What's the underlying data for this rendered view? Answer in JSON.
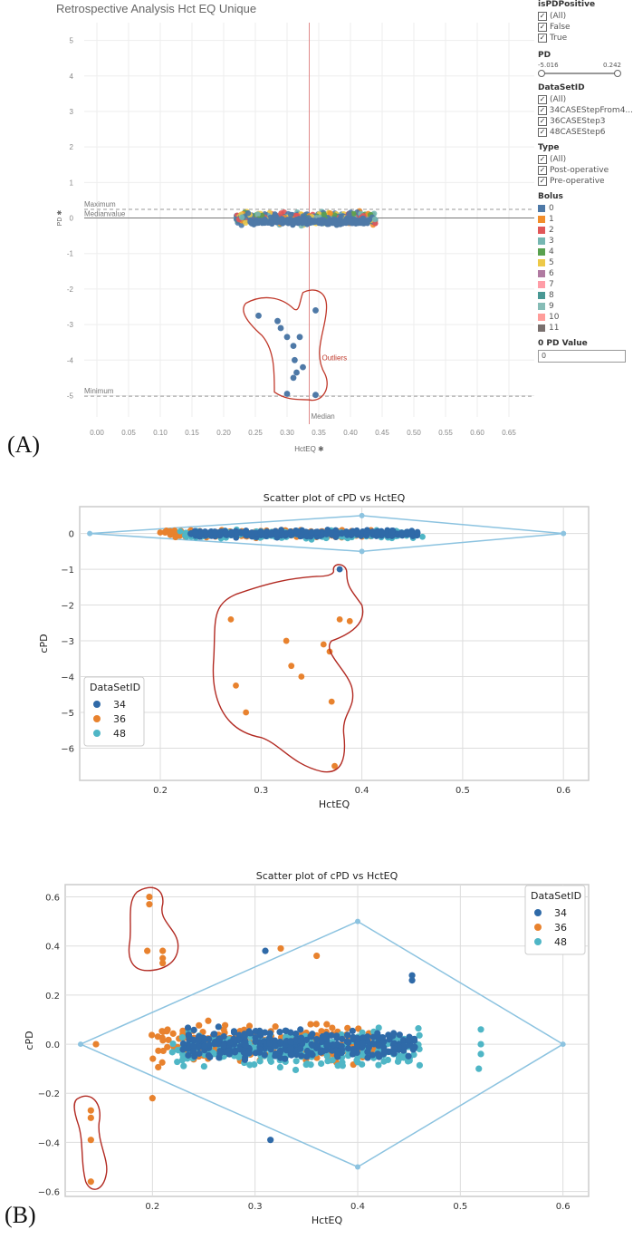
{
  "figure_labels": {
    "a": "(A)",
    "b": "(B)"
  },
  "panelA": {
    "title": "Retrospective Analysis Hct EQ Unique",
    "x_axis_title": "HctEQ ✱",
    "y_axis_title": "PD ✱",
    "ref_lines": {
      "maximum": "Maximum",
      "median_value": "Medianvalue",
      "minimum": "Minimum",
      "median": "Median"
    },
    "outlier_label": "Outliers",
    "filters": {
      "ispd": {
        "title": "isPDPositive",
        "items": [
          "(All)",
          "False",
          "True"
        ]
      },
      "pd": {
        "title": "PD",
        "min": "-5.016",
        "max": "0.242"
      },
      "dataset": {
        "title": "DataSetID",
        "items": [
          "(All)",
          "34CASEStepFrom4...",
          "36CASEStep3",
          "48CASEStep6"
        ]
      },
      "type": {
        "title": "Type",
        "items": [
          "(All)",
          "Post-operative",
          "Pre-operative"
        ]
      },
      "bolus": {
        "title": "Bolus",
        "items": [
          "0",
          "1",
          "2",
          "3",
          "4",
          "5",
          "6",
          "7",
          "8",
          "9",
          "10",
          "11"
        ],
        "colors": [
          "#4e79a7",
          "#f28e2b",
          "#e15759",
          "#76b7b2",
          "#59a14f",
          "#edc948",
          "#b07aa1",
          "#ff9da7",
          "#499894",
          "#86bcb6",
          "#ff9d9a",
          "#79706e"
        ]
      },
      "pd_value": {
        "title": "0 PD Value",
        "value": "0"
      }
    }
  },
  "chart_data": [
    {
      "type": "scatter",
      "title": "Retrospective Analysis Hct EQ Unique",
      "xlabel": "HctEQ",
      "ylabel": "PD",
      "xlim": [
        -0.02,
        0.69
      ],
      "ylim": [
        -5.6,
        5.5
      ],
      "xticks": [
        0.0,
        0.05,
        0.1,
        0.15,
        0.2,
        0.25,
        0.3,
        0.35,
        0.4,
        0.45,
        0.5,
        0.55,
        0.6,
        0.65
      ],
      "xtick_labels": [
        "0.00",
        "0.05",
        "0.10",
        "0.15",
        "0.20",
        "0.25",
        "0.30",
        "0.35",
        "0.40",
        "0.45",
        "0.50",
        "0.55",
        "0.60",
        "0.65"
      ],
      "yticks": [
        5,
        4,
        3,
        2,
        1,
        0,
        -1,
        -2,
        -3,
        -4,
        -5
      ],
      "ytick_labels": [
        "5",
        "4",
        "3",
        "2",
        "1",
        "0",
        "-1",
        "-2",
        "-3",
        "-4",
        "-5"
      ],
      "reference_lines": {
        "maximum": 0.242,
        "median": 0.0,
        "minimum": -5.016,
        "median_x": 0.335
      },
      "cluster": {
        "x_range": [
          0.22,
          0.44
        ],
        "y_range": [
          -0.3,
          0.25
        ]
      },
      "outliers": [
        [
          0.255,
          -2.75
        ],
        [
          0.285,
          -2.9
        ],
        [
          0.3,
          -3.35
        ],
        [
          0.29,
          -3.1
        ],
        [
          0.32,
          -3.35
        ],
        [
          0.31,
          -3.6
        ],
        [
          0.312,
          -4.0
        ],
        [
          0.315,
          -4.35
        ],
        [
          0.325,
          -4.2
        ],
        [
          0.345,
          -2.6
        ],
        [
          0.3,
          -4.95
        ],
        [
          0.345,
          -4.98
        ],
        [
          0.31,
          -4.5
        ]
      ]
    },
    {
      "type": "scatter",
      "title": "Scatter plot of cPD vs HctEQ",
      "xlabel": "HctEQ",
      "ylabel": "cPD",
      "xlim": [
        0.12,
        0.625
      ],
      "ylim": [
        -6.9,
        0.75
      ],
      "xticks": [
        0.2,
        0.3,
        0.4,
        0.5,
        0.6
      ],
      "xtick_labels": [
        "0.2",
        "0.3",
        "0.4",
        "0.5",
        "0.6"
      ],
      "yticks": [
        0,
        -1,
        -2,
        -3,
        -4,
        -5,
        -6
      ],
      "ytick_labels": [
        "0",
        "−1",
        "−2",
        "−3",
        "−4",
        "−5",
        "−6"
      ],
      "diamond": [
        [
          0.13,
          0
        ],
        [
          0.4,
          0.5
        ],
        [
          0.6,
          0
        ],
        [
          0.4,
          -0.5
        ]
      ],
      "legend": {
        "title": "DataSetID",
        "entries": [
          "34",
          "36",
          "48"
        ],
        "position": "bottom-left"
      },
      "series": [
        {
          "name": "34",
          "color": "#2f6aa8"
        },
        {
          "name": "36",
          "color": "#e8822e"
        },
        {
          "name": "48",
          "color": "#4fb6c6"
        }
      ],
      "outliers": [
        {
          "x": 0.378,
          "y": -1.0,
          "s": "34"
        },
        {
          "x": 0.27,
          "y": -2.4,
          "s": "36"
        },
        {
          "x": 0.378,
          "y": -2.4,
          "s": "36"
        },
        {
          "x": 0.388,
          "y": -2.45,
          "s": "36"
        },
        {
          "x": 0.325,
          "y": -3.0,
          "s": "36"
        },
        {
          "x": 0.362,
          "y": -3.1,
          "s": "36"
        },
        {
          "x": 0.368,
          "y": -3.3,
          "s": "36"
        },
        {
          "x": 0.33,
          "y": -3.7,
          "s": "36"
        },
        {
          "x": 0.34,
          "y": -4.0,
          "s": "36"
        },
        {
          "x": 0.275,
          "y": -4.25,
          "s": "36"
        },
        {
          "x": 0.37,
          "y": -4.7,
          "s": "36"
        },
        {
          "x": 0.285,
          "y": -5.0,
          "s": "36"
        },
        {
          "x": 0.373,
          "y": -6.5,
          "s": "36"
        }
      ]
    },
    {
      "type": "scatter",
      "title": "Scatter plot of cPD vs HctEQ",
      "xlabel": "HctEQ",
      "ylabel": "cPD",
      "xlim": [
        0.115,
        0.625
      ],
      "ylim": [
        -0.62,
        0.65
      ],
      "xticks": [
        0.2,
        0.3,
        0.4,
        0.5,
        0.6
      ],
      "xtick_labels": [
        "0.2",
        "0.3",
        "0.4",
        "0.5",
        "0.6"
      ],
      "yticks": [
        0.6,
        0.4,
        0.2,
        0.0,
        -0.2,
        -0.4,
        -0.6
      ],
      "ytick_labels": [
        "0.6",
        "0.4",
        "0.2",
        "0.0",
        "−0.2",
        "−0.4",
        "−0.6"
      ],
      "diamond": [
        [
          0.13,
          0
        ],
        [
          0.4,
          0.5
        ],
        [
          0.6,
          0
        ],
        [
          0.4,
          -0.5
        ]
      ],
      "legend": {
        "title": "DataSetID",
        "entries": [
          "34",
          "36",
          "48"
        ],
        "position": "top-right"
      },
      "series": [
        {
          "name": "34",
          "color": "#2f6aa8"
        },
        {
          "name": "36",
          "color": "#e8822e"
        },
        {
          "name": "48",
          "color": "#4fb6c6"
        }
      ],
      "extra_points": [
        {
          "x": 0.197,
          "y": 0.6,
          "s": "36"
        },
        {
          "x": 0.197,
          "y": 0.57,
          "s": "36"
        },
        {
          "x": 0.195,
          "y": 0.38,
          "s": "36"
        },
        {
          "x": 0.21,
          "y": 0.38,
          "s": "36"
        },
        {
          "x": 0.21,
          "y": 0.35,
          "s": "36"
        },
        {
          "x": 0.21,
          "y": 0.33,
          "s": "36"
        },
        {
          "x": 0.14,
          "y": -0.27,
          "s": "36"
        },
        {
          "x": 0.14,
          "y": -0.3,
          "s": "36"
        },
        {
          "x": 0.14,
          "y": -0.39,
          "s": "36"
        },
        {
          "x": 0.14,
          "y": -0.56,
          "s": "36"
        },
        {
          "x": 0.145,
          "y": 0.0,
          "s": "36"
        },
        {
          "x": 0.453,
          "y": 0.28,
          "s": "34"
        },
        {
          "x": 0.453,
          "y": 0.26,
          "s": "34"
        },
        {
          "x": 0.31,
          "y": 0.38,
          "s": "34"
        },
        {
          "x": 0.325,
          "y": 0.39,
          "s": "36"
        },
        {
          "x": 0.36,
          "y": 0.36,
          "s": "36"
        },
        {
          "x": 0.52,
          "y": 0.06,
          "s": "48"
        },
        {
          "x": 0.52,
          "y": 0.0,
          "s": "48"
        },
        {
          "x": 0.52,
          "y": -0.04,
          "s": "48"
        },
        {
          "x": 0.518,
          "y": -0.1,
          "s": "48"
        },
        {
          "x": 0.2,
          "y": -0.22,
          "s": "36"
        },
        {
          "x": 0.315,
          "y": -0.39,
          "s": "34"
        }
      ]
    }
  ]
}
